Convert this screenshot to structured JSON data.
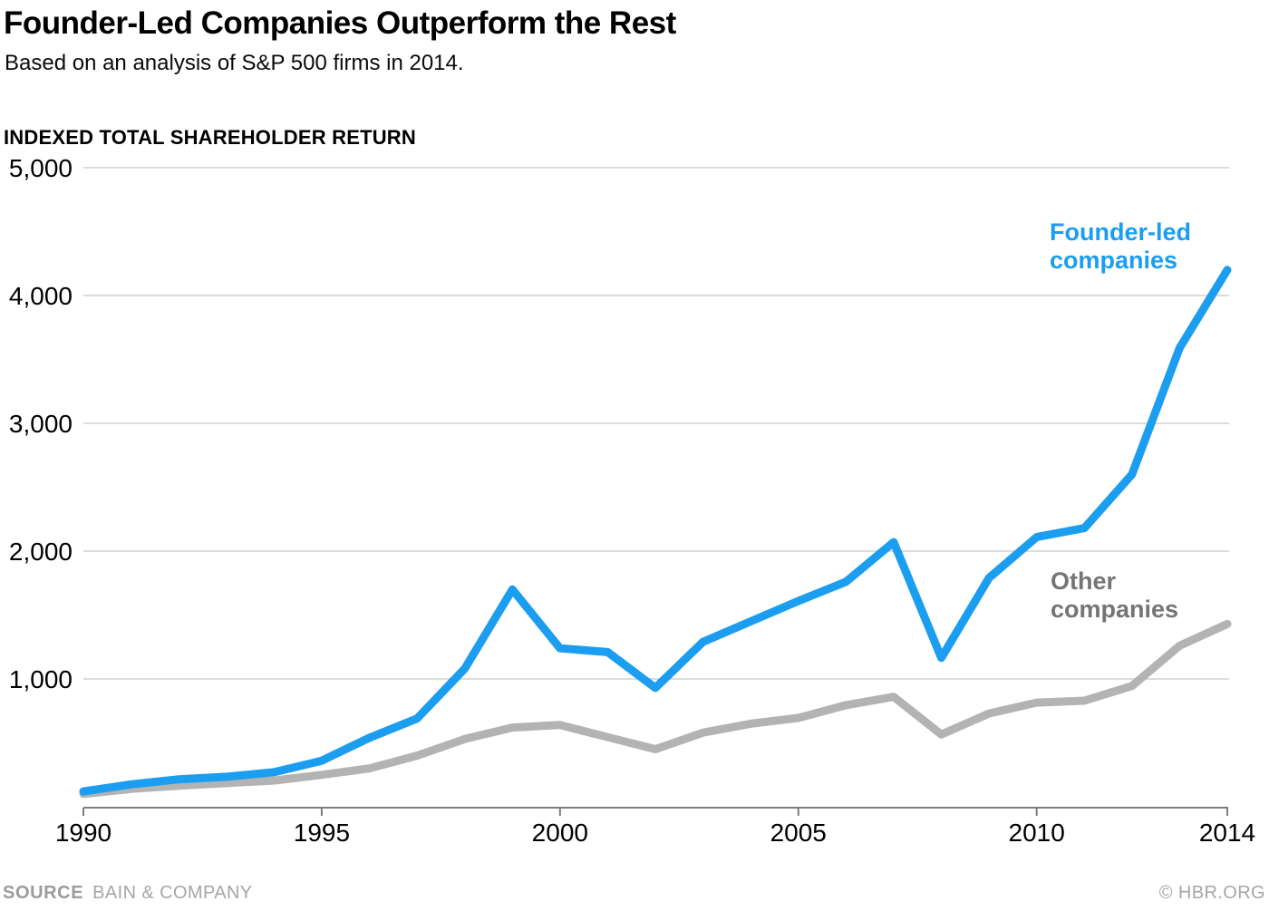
{
  "header": {
    "title": "Founder-Led Companies Outperform the Rest",
    "subtitle": "Based on an analysis of S&P 500 firms in 2014."
  },
  "axis_title": "INDEXED TOTAL SHAREHOLDER RETURN",
  "chart_data": {
    "type": "line",
    "title": "Founder-Led Companies Outperform the Rest",
    "xlabel": "",
    "ylabel": "INDEXED TOTAL SHAREHOLDER RETURN",
    "ylim": [
      0,
      5000
    ],
    "xlim": [
      1990,
      2014
    ],
    "grid": "horizontal",
    "legend_position": "inline annotations",
    "x": [
      1990,
      1991,
      1992,
      1993,
      1994,
      1995,
      1996,
      1997,
      1998,
      1999,
      2000,
      2001,
      2002,
      2003,
      2004,
      2005,
      2006,
      2007,
      2008,
      2009,
      2010,
      2011,
      2012,
      2013,
      2014
    ],
    "series": [
      {
        "name": "Other companies",
        "color": "#b3b3b3",
        "values": [
          100,
          140,
          165,
          185,
          205,
          250,
          300,
          400,
          530,
          620,
          640,
          545,
          450,
          580,
          650,
          695,
          795,
          860,
          565,
          730,
          815,
          830,
          945,
          1260,
          1430
        ]
      },
      {
        "name": "Founder-led companies",
        "color": "#1b9df0",
        "values": [
          120,
          175,
          215,
          235,
          270,
          360,
          540,
          690,
          1080,
          1700,
          1240,
          1210,
          930,
          1290,
          1450,
          1610,
          1760,
          2070,
          1165,
          1790,
          2110,
          2180,
          2600,
          3590,
          4200
        ]
      }
    ],
    "yticks": [
      {
        "value": 1000,
        "label": "1,000"
      },
      {
        "value": 2000,
        "label": "2,000"
      },
      {
        "value": 3000,
        "label": "3,000"
      },
      {
        "value": 4000,
        "label": "4,000"
      },
      {
        "value": 5000,
        "label": "5,000"
      }
    ],
    "xticks": [
      {
        "value": 1990,
        "label": "1990"
      },
      {
        "value": 1995,
        "label": "1995"
      },
      {
        "value": 2000,
        "label": "2000"
      },
      {
        "value": 2005,
        "label": "2005"
      },
      {
        "value": 2010,
        "label": "2010"
      },
      {
        "value": 2014,
        "label": "2014"
      }
    ]
  },
  "annotations": {
    "founder_label": "Founder-led\ncompanies",
    "other_label": "Other\ncompanies"
  },
  "footer": {
    "source_label": "SOURCE",
    "source": "BAIN & COMPANY",
    "credit": "© HBR.ORG"
  },
  "colors": {
    "founder_line": "#1b9df0",
    "other_line": "#b3b3b3",
    "founder_label": "#1b9df0",
    "other_label": "#757575",
    "gridline": "#d0d0d0",
    "axis": "#7d7d7d",
    "tick_text": "#000000",
    "footer_text": "#a6a6a6"
  }
}
